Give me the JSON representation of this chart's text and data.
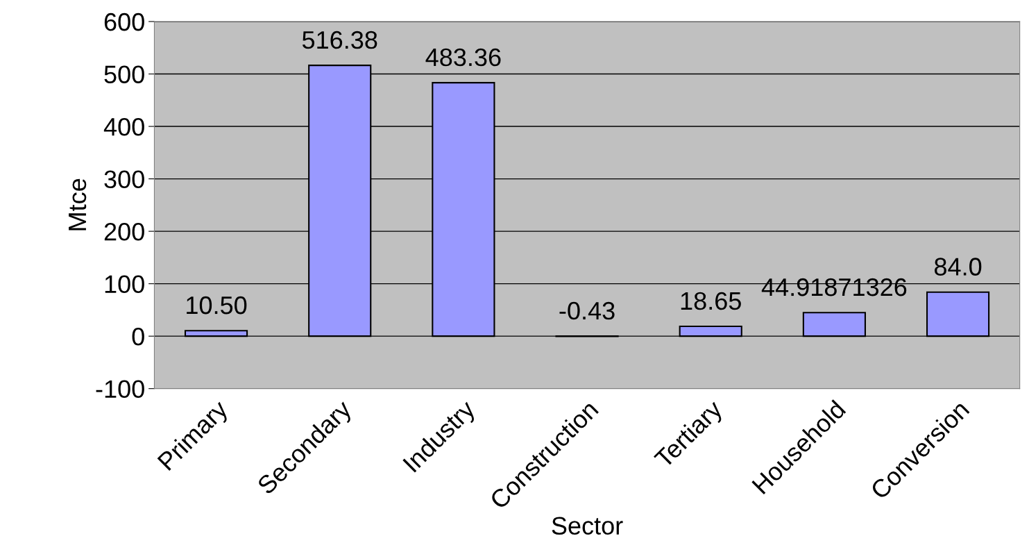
{
  "chart_data": {
    "type": "bar",
    "xlabel": "Sector",
    "ylabel": "Mtce",
    "categories": [
      "Primary",
      "Secondary",
      "Industry",
      "Construction",
      "Tertiary",
      "Household",
      "Conversion"
    ],
    "values": [
      10.5,
      516.38,
      483.36,
      -0.43,
      18.65,
      44.91871326,
      84.0
    ],
    "value_labels": [
      "10.50",
      "516.38",
      "483.36",
      "-0.43",
      "18.65",
      "44.91871326",
      "84.0"
    ],
    "color": "#9999ff",
    "ylim": [
      -100,
      600
    ],
    "yticks": [
      {
        "value": -100,
        "label": "-100"
      },
      0,
      100,
      200,
      300,
      400,
      500,
      600
    ],
    "grid": "y"
  }
}
